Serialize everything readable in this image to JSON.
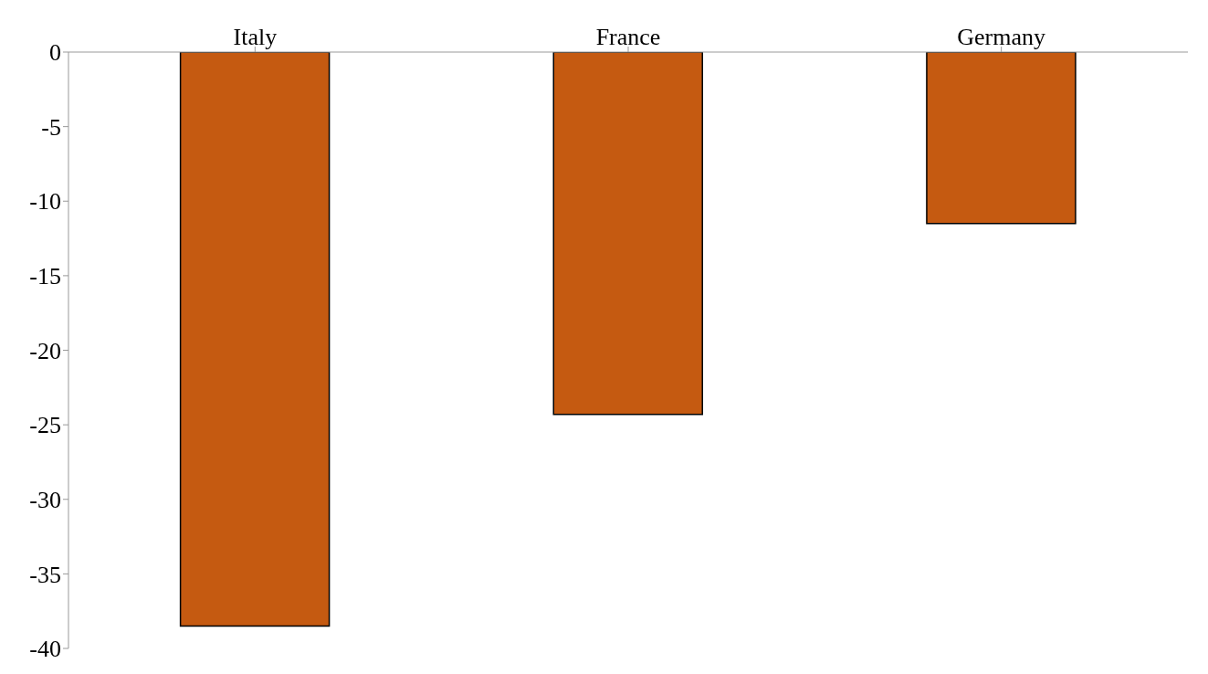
{
  "chart_data": {
    "type": "bar",
    "categories": [
      "Italy",
      "France",
      "Germany"
    ],
    "values": [
      -38.5,
      -24.3,
      -11.5
    ],
    "color": "#c55a11",
    "ylim": [
      -40,
      0
    ],
    "yticks": [
      -40,
      -35,
      -30,
      -25,
      -20,
      -15,
      -10,
      -5,
      0
    ],
    "grid": false
  }
}
